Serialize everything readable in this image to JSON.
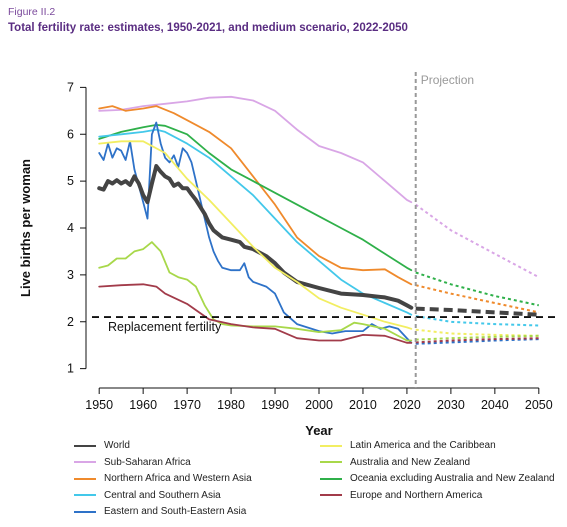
{
  "figure_label": "Figure II.2",
  "figure_title": "Total fertility rate: estimates, 1950-2021, and medium scenario, 2022-2050",
  "chart_data": {
    "type": "line",
    "xlabel": "Year",
    "ylabel": "Live births per woman",
    "xlim": [
      1947,
      2053
    ],
    "ylim": [
      0.8,
      7.2
    ],
    "x_ticks": [
      1950,
      1960,
      1970,
      1980,
      1990,
      2000,
      2010,
      2020,
      2030,
      2040,
      2050
    ],
    "y_ticks": [
      1,
      2,
      3,
      4,
      5,
      6,
      7
    ],
    "projection_start": 2022,
    "projection_label": "Projection",
    "replacement_value": 2.1,
    "replacement_label": "Replacement fertility",
    "grid": false,
    "legend_position": "bottom",
    "series": [
      {
        "name": "Sub-Saharan Africa",
        "color": "#d9a6e6",
        "estimates": [
          [
            1950,
            6.5
          ],
          [
            1955,
            6.52
          ],
          [
            1960,
            6.6
          ],
          [
            1965,
            6.65
          ],
          [
            1970,
            6.7
          ],
          [
            1975,
            6.78
          ],
          [
            1980,
            6.8
          ],
          [
            1985,
            6.72
          ],
          [
            1990,
            6.5
          ],
          [
            1995,
            6.1
          ],
          [
            2000,
            5.75
          ],
          [
            2005,
            5.6
          ],
          [
            2010,
            5.4
          ],
          [
            2015,
            5.0
          ],
          [
            2020,
            4.6
          ],
          [
            2021,
            4.55
          ]
        ],
        "projection": [
          [
            2022,
            4.5
          ],
          [
            2030,
            3.95
          ],
          [
            2040,
            3.45
          ],
          [
            2050,
            2.95
          ]
        ]
      },
      {
        "name": "Northern Africa and Western Asia",
        "color": "#ef8a2c",
        "estimates": [
          [
            1950,
            6.55
          ],
          [
            1953,
            6.6
          ],
          [
            1956,
            6.5
          ],
          [
            1960,
            6.55
          ],
          [
            1963,
            6.6
          ],
          [
            1967,
            6.45
          ],
          [
            1970,
            6.3
          ],
          [
            1975,
            6.05
          ],
          [
            1980,
            5.7
          ],
          [
            1985,
            5.1
          ],
          [
            1990,
            4.5
          ],
          [
            1995,
            3.8
          ],
          [
            2000,
            3.4
          ],
          [
            2005,
            3.15
          ],
          [
            2010,
            3.1
          ],
          [
            2015,
            3.12
          ],
          [
            2018,
            2.95
          ],
          [
            2021,
            2.8
          ]
        ],
        "projection": [
          [
            2022,
            2.78
          ],
          [
            2030,
            2.6
          ],
          [
            2040,
            2.4
          ],
          [
            2050,
            2.2
          ]
        ]
      },
      {
        "name": "Oceania excluding Australia and New Zealand",
        "color": "#2fb04a",
        "estimates": [
          [
            1950,
            5.9
          ],
          [
            1955,
            6.05
          ],
          [
            1960,
            6.15
          ],
          [
            1963,
            6.2
          ],
          [
            1965,
            6.18
          ],
          [
            1970,
            6.0
          ],
          [
            1975,
            5.6
          ],
          [
            1980,
            5.25
          ],
          [
            1985,
            5.0
          ],
          [
            1990,
            4.75
          ],
          [
            1995,
            4.5
          ],
          [
            2000,
            4.25
          ],
          [
            2005,
            4.0
          ],
          [
            2010,
            3.75
          ],
          [
            2015,
            3.45
          ],
          [
            2020,
            3.15
          ],
          [
            2021,
            3.1
          ]
        ],
        "projection": [
          [
            2022,
            3.05
          ],
          [
            2030,
            2.8
          ],
          [
            2040,
            2.55
          ],
          [
            2050,
            2.35
          ]
        ]
      },
      {
        "name": "Central and Southern Asia",
        "color": "#43c8ea",
        "estimates": [
          [
            1950,
            5.95
          ],
          [
            1955,
            6.0
          ],
          [
            1960,
            6.05
          ],
          [
            1963,
            6.1
          ],
          [
            1965,
            6.05
          ],
          [
            1970,
            5.8
          ],
          [
            1975,
            5.5
          ],
          [
            1980,
            5.1
          ],
          [
            1985,
            4.7
          ],
          [
            1990,
            4.2
          ],
          [
            1995,
            3.7
          ],
          [
            2000,
            3.3
          ],
          [
            2005,
            2.9
          ],
          [
            2010,
            2.6
          ],
          [
            2015,
            2.4
          ],
          [
            2020,
            2.2
          ],
          [
            2021,
            2.15
          ]
        ],
        "projection": [
          [
            2022,
            2.12
          ],
          [
            2030,
            2.0
          ],
          [
            2040,
            1.95
          ],
          [
            2050,
            1.92
          ]
        ]
      },
      {
        "name": "Eastern and South-Eastern Asia",
        "color": "#2e72c8",
        "estimates": [
          [
            1950,
            5.6
          ],
          [
            1951,
            5.45
          ],
          [
            1952,
            5.8
          ],
          [
            1953,
            5.5
          ],
          [
            1954,
            5.7
          ],
          [
            1955,
            5.65
          ],
          [
            1956,
            5.45
          ],
          [
            1957,
            5.85
          ],
          [
            1958,
            5.25
          ],
          [
            1959,
            4.9
          ],
          [
            1960,
            4.55
          ],
          [
            1961,
            4.2
          ],
          [
            1962,
            6.0
          ],
          [
            1963,
            6.25
          ],
          [
            1964,
            5.8
          ],
          [
            1965,
            5.5
          ],
          [
            1966,
            5.4
          ],
          [
            1967,
            5.55
          ],
          [
            1968,
            5.3
          ],
          [
            1969,
            5.7
          ],
          [
            1970,
            5.6
          ],
          [
            1971,
            5.4
          ],
          [
            1972,
            5.0
          ],
          [
            1973,
            4.6
          ],
          [
            1974,
            4.2
          ],
          [
            1975,
            3.8
          ],
          [
            1976,
            3.5
          ],
          [
            1977,
            3.3
          ],
          [
            1978,
            3.15
          ],
          [
            1980,
            3.1
          ],
          [
            1982,
            3.1
          ],
          [
            1983,
            3.25
          ],
          [
            1984,
            2.95
          ],
          [
            1985,
            2.85
          ],
          [
            1988,
            2.75
          ],
          [
            1990,
            2.6
          ],
          [
            1992,
            2.2
          ],
          [
            1995,
            1.95
          ],
          [
            2000,
            1.8
          ],
          [
            2003,
            1.75
          ],
          [
            2006,
            1.8
          ],
          [
            2010,
            1.8
          ],
          [
            2012,
            1.95
          ],
          [
            2014,
            1.85
          ],
          [
            2016,
            1.9
          ],
          [
            2018,
            1.85
          ],
          [
            2019,
            1.75
          ],
          [
            2020,
            1.65
          ],
          [
            2021,
            1.55
          ]
        ],
        "projection": [
          [
            2022,
            1.53
          ],
          [
            2030,
            1.56
          ],
          [
            2040,
            1.6
          ],
          [
            2050,
            1.63
          ]
        ]
      },
      {
        "name": "World",
        "color": "#444444",
        "estimates": [
          [
            1950,
            4.85
          ],
          [
            1951,
            4.82
          ],
          [
            1952,
            5.0
          ],
          [
            1953,
            4.95
          ],
          [
            1954,
            5.02
          ],
          [
            1955,
            4.95
          ],
          [
            1956,
            5.0
          ],
          [
            1957,
            4.92
          ],
          [
            1958,
            5.1
          ],
          [
            1959,
            4.95
          ],
          [
            1960,
            4.7
          ],
          [
            1961,
            4.55
          ],
          [
            1962,
            4.95
          ],
          [
            1963,
            5.32
          ],
          [
            1964,
            5.2
          ],
          [
            1965,
            5.1
          ],
          [
            1966,
            5.05
          ],
          [
            1967,
            4.9
          ],
          [
            1968,
            4.95
          ],
          [
            1969,
            4.85
          ],
          [
            1970,
            4.85
          ],
          [
            1971,
            4.72
          ],
          [
            1972,
            4.6
          ],
          [
            1973,
            4.45
          ],
          [
            1974,
            4.3
          ],
          [
            1975,
            4.1
          ],
          [
            1976,
            3.95
          ],
          [
            1978,
            3.8
          ],
          [
            1980,
            3.75
          ],
          [
            1982,
            3.7
          ],
          [
            1983,
            3.6
          ],
          [
            1985,
            3.55
          ],
          [
            1988,
            3.4
          ],
          [
            1990,
            3.25
          ],
          [
            1992,
            3.05
          ],
          [
            1995,
            2.85
          ],
          [
            2000,
            2.72
          ],
          [
            2005,
            2.6
          ],
          [
            2010,
            2.57
          ],
          [
            2015,
            2.52
          ],
          [
            2018,
            2.45
          ],
          [
            2020,
            2.35
          ],
          [
            2021,
            2.3
          ]
        ],
        "projection": [
          [
            2022,
            2.28
          ],
          [
            2030,
            2.25
          ],
          [
            2040,
            2.2
          ],
          [
            2050,
            2.15
          ]
        ]
      },
      {
        "name": "Latin America and the Caribbean",
        "color": "#f2ee62",
        "estimates": [
          [
            1950,
            5.8
          ],
          [
            1955,
            5.85
          ],
          [
            1960,
            5.85
          ],
          [
            1965,
            5.6
          ],
          [
            1970,
            5.05
          ],
          [
            1975,
            4.6
          ],
          [
            1980,
            4.1
          ],
          [
            1985,
            3.6
          ],
          [
            1990,
            3.15
          ],
          [
            1995,
            2.85
          ],
          [
            2000,
            2.5
          ],
          [
            2005,
            2.3
          ],
          [
            2010,
            2.15
          ],
          [
            2015,
            2.0
          ],
          [
            2020,
            1.88
          ],
          [
            2021,
            1.85
          ]
        ],
        "projection": [
          [
            2022,
            1.83
          ],
          [
            2030,
            1.75
          ],
          [
            2040,
            1.72
          ],
          [
            2050,
            1.7
          ]
        ]
      },
      {
        "name": "Australia and New Zealand",
        "color": "#a8d84a",
        "estimates": [
          [
            1950,
            3.15
          ],
          [
            1952,
            3.2
          ],
          [
            1954,
            3.35
          ],
          [
            1956,
            3.35
          ],
          [
            1958,
            3.5
          ],
          [
            1960,
            3.55
          ],
          [
            1962,
            3.7
          ],
          [
            1964,
            3.5
          ],
          [
            1966,
            3.05
          ],
          [
            1968,
            2.95
          ],
          [
            1970,
            2.9
          ],
          [
            1972,
            2.75
          ],
          [
            1974,
            2.35
          ],
          [
            1976,
            2.05
          ],
          [
            1978,
            1.95
          ],
          [
            1980,
            1.92
          ],
          [
            1985,
            1.9
          ],
          [
            1990,
            1.9
          ],
          [
            1995,
            1.85
          ],
          [
            2000,
            1.78
          ],
          [
            2005,
            1.82
          ],
          [
            2008,
            1.98
          ],
          [
            2010,
            1.95
          ],
          [
            2015,
            1.85
          ],
          [
            2020,
            1.6
          ],
          [
            2021,
            1.6
          ]
        ],
        "projection": [
          [
            2022,
            1.62
          ],
          [
            2030,
            1.65
          ],
          [
            2040,
            1.68
          ],
          [
            2050,
            1.7
          ]
        ]
      },
      {
        "name": "Europe and Northern America",
        "color": "#a23b4a",
        "estimates": [
          [
            1950,
            2.75
          ],
          [
            1955,
            2.78
          ],
          [
            1960,
            2.8
          ],
          [
            1963,
            2.75
          ],
          [
            1965,
            2.6
          ],
          [
            1970,
            2.38
          ],
          [
            1975,
            2.05
          ],
          [
            1980,
            1.95
          ],
          [
            1985,
            1.88
          ],
          [
            1990,
            1.85
          ],
          [
            1995,
            1.65
          ],
          [
            2000,
            1.6
          ],
          [
            2005,
            1.6
          ],
          [
            2010,
            1.72
          ],
          [
            2015,
            1.7
          ],
          [
            2020,
            1.55
          ],
          [
            2021,
            1.55
          ]
        ],
        "projection": [
          [
            2022,
            1.56
          ],
          [
            2030,
            1.6
          ],
          [
            2040,
            1.63
          ],
          [
            2050,
            1.65
          ]
        ]
      }
    ],
    "legend": [
      {
        "name": "World",
        "color": "#444444"
      },
      {
        "name": "Latin America and the Caribbean",
        "color": "#f2ee62"
      },
      {
        "name": "Sub-Saharan Africa",
        "color": "#d9a6e6"
      },
      {
        "name": "Australia and New Zealand",
        "color": "#a8d84a"
      },
      {
        "name": "Northern Africa and Western Asia",
        "color": "#ef8a2c"
      },
      {
        "name": "Oceania excluding Australia and New Zealand",
        "color": "#2fb04a"
      },
      {
        "name": "Central and Southern Asia",
        "color": "#43c8ea"
      },
      {
        "name": "Europe and Northern America",
        "color": "#a23b4a"
      },
      {
        "name": "Eastern and South-Eastern Asia",
        "color": "#2e72c8"
      }
    ]
  }
}
